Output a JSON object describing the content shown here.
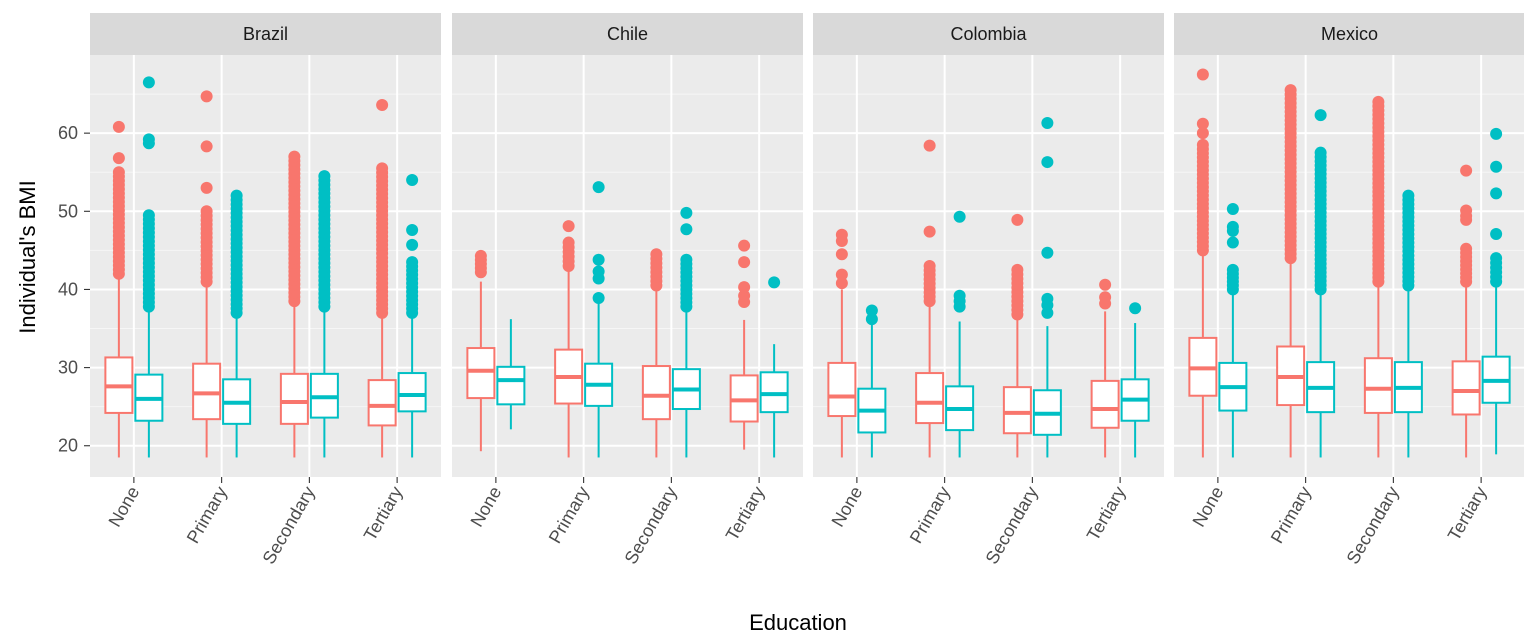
{
  "chart_data": {
    "type": "boxplot",
    "xlabel": "Education",
    "ylabel": "Individual's BMI",
    "ylim": [
      16,
      70
    ],
    "y_ticks": [
      20,
      30,
      40,
      50,
      60
    ],
    "categories": [
      "None",
      "Primary",
      "Secondary",
      "Tertiary"
    ],
    "series_colors": [
      "#F8766D",
      "#00BFC4"
    ],
    "grid": true,
    "legend": "none",
    "panels": [
      {
        "title": "Brazil",
        "groups": [
          {
            "category": "None",
            "boxes": [
              {
                "min": 18.5,
                "q1": 24.2,
                "median": 27.6,
                "q3": 31.3,
                "max": 42.0,
                "outliers_range": [
                  42.0,
                  55.0
                ],
                "outliers": [
                  56.8,
                  60.8
                ]
              },
              {
                "min": 18.5,
                "q1": 23.2,
                "median": 26.0,
                "q3": 29.1,
                "max": 37.8,
                "outliers_range": [
                  37.8,
                  49.5
                ],
                "outliers": [
                  58.7,
                  59.2,
                  66.5
                ]
              }
            ]
          },
          {
            "category": "Primary",
            "boxes": [
              {
                "min": 18.5,
                "q1": 23.4,
                "median": 26.7,
                "q3": 30.5,
                "max": 41.0,
                "outliers_range": [
                  41.0,
                  50.0
                ],
                "outliers": [
                  53.0,
                  58.3,
                  64.7
                ]
              },
              {
                "min": 18.5,
                "q1": 22.8,
                "median": 25.5,
                "q3": 28.5,
                "max": 37.0,
                "outliers_range": [
                  37.0,
                  52.0
                ],
                "outliers": []
              }
            ]
          },
          {
            "category": "Secondary",
            "boxes": [
              {
                "min": 18.5,
                "q1": 22.8,
                "median": 25.6,
                "q3": 29.2,
                "max": 38.5,
                "outliers_range": [
                  38.5,
                  57.0
                ],
                "outliers": []
              },
              {
                "min": 18.5,
                "q1": 23.6,
                "median": 26.2,
                "q3": 29.2,
                "max": 37.8,
                "outliers_range": [
                  37.8,
                  54.5
                ],
                "outliers": []
              }
            ]
          },
          {
            "category": "Tertiary",
            "boxes": [
              {
                "min": 18.5,
                "q1": 22.6,
                "median": 25.1,
                "q3": 28.4,
                "max": 37.0,
                "outliers_range": [
                  37.0,
                  55.5
                ],
                "outliers": [
                  63.6
                ]
              },
              {
                "min": 18.5,
                "q1": 24.4,
                "median": 26.5,
                "q3": 29.3,
                "max": 37.0,
                "outliers_range": [
                  37.0,
                  43.5
                ],
                "outliers": [
                  45.7,
                  47.6,
                  54.0
                ]
              }
            ]
          }
        ]
      },
      {
        "title": "Chile",
        "groups": [
          {
            "category": "None",
            "boxes": [
              {
                "min": 19.3,
                "q1": 26.1,
                "median": 29.6,
                "q3": 32.5,
                "max": 41.0,
                "outliers_range": [
                  42.2,
                  44.3
                ],
                "outliers": []
              },
              {
                "min": 22.1,
                "q1": 25.3,
                "median": 28.4,
                "q3": 30.1,
                "max": 36.2,
                "outliers_range": [],
                "outliers": []
              }
            ]
          },
          {
            "category": "Primary",
            "boxes": [
              {
                "min": 18.5,
                "q1": 25.4,
                "median": 28.8,
                "q3": 32.3,
                "max": 42.5,
                "outliers_range": [
                  43.0,
                  46.0
                ],
                "outliers": [
                  48.1
                ]
              },
              {
                "min": 18.5,
                "q1": 25.1,
                "median": 27.8,
                "q3": 30.5,
                "max": 38.5,
                "outliers_range": [],
                "outliers": [
                  38.9,
                  41.4,
                  42.3,
                  43.8,
                  53.1
                ]
              }
            ]
          },
          {
            "category": "Secondary",
            "boxes": [
              {
                "min": 18.5,
                "q1": 23.4,
                "median": 26.4,
                "q3": 30.2,
                "max": 40.0,
                "outliers_range": [
                  40.5,
                  44.5
                ],
                "outliers": []
              },
              {
                "min": 18.5,
                "q1": 24.7,
                "median": 27.2,
                "q3": 29.8,
                "max": 37.5,
                "outliers_range": [
                  37.8,
                  43.8
                ],
                "outliers": [
                  47.7,
                  49.8
                ]
              }
            ]
          },
          {
            "category": "Tertiary",
            "boxes": [
              {
                "min": 19.5,
                "q1": 23.1,
                "median": 25.8,
                "q3": 29.0,
                "max": 36.1,
                "outliers_range": [],
                "outliers": [
                  38.4,
                  39.2,
                  40.3,
                  43.5,
                  45.6
                ]
              },
              {
                "min": 18.5,
                "q1": 24.3,
                "median": 26.6,
                "q3": 29.4,
                "max": 33.0,
                "outliers_range": [],
                "outliers": [
                  40.9
                ]
              }
            ]
          }
        ]
      },
      {
        "title": "Colombia",
        "groups": [
          {
            "category": "None",
            "boxes": [
              {
                "min": 18.5,
                "q1": 23.8,
                "median": 26.3,
                "q3": 30.6,
                "max": 40.0,
                "outliers_range": [],
                "outliers": [
                  40.8,
                  41.9,
                  44.5,
                  46.2,
                  47.0
                ]
              },
              {
                "min": 18.5,
                "q1": 21.7,
                "median": 24.5,
                "q3": 27.3,
                "max": 35.5,
                "outliers_range": [],
                "outliers": [
                  36.2,
                  37.3
                ]
              }
            ]
          },
          {
            "category": "Primary",
            "boxes": [
              {
                "min": 18.5,
                "q1": 22.9,
                "median": 25.5,
                "q3": 29.3,
                "max": 38.0,
                "outliers_range": [
                  38.5,
                  43.0
                ],
                "outliers": [
                  47.4,
                  58.4
                ]
              },
              {
                "min": 18.5,
                "q1": 22.0,
                "median": 24.7,
                "q3": 27.6,
                "max": 35.9,
                "outliers_range": [],
                "outliers": [
                  37.8,
                  38.5,
                  39.2,
                  49.3
                ]
              }
            ]
          },
          {
            "category": "Secondary",
            "boxes": [
              {
                "min": 18.5,
                "q1": 21.6,
                "median": 24.2,
                "q3": 27.5,
                "max": 36.5,
                "outliers_range": [
                  36.8,
                  42.5
                ],
                "outliers": [
                  48.9
                ]
              },
              {
                "min": 18.5,
                "q1": 21.4,
                "median": 24.1,
                "q3": 27.1,
                "max": 35.3,
                "outliers_range": [],
                "outliers": [
                  37.0,
                  38.0,
                  38.8,
                  44.7,
                  56.3,
                  61.3
                ]
              }
            ]
          },
          {
            "category": "Tertiary",
            "boxes": [
              {
                "min": 18.5,
                "q1": 22.3,
                "median": 24.7,
                "q3": 28.3,
                "max": 37.2,
                "outliers_range": [],
                "outliers": [
                  38.2,
                  39.0,
                  40.6
                ]
              },
              {
                "min": 18.5,
                "q1": 23.2,
                "median": 25.9,
                "q3": 28.5,
                "max": 35.7,
                "outliers_range": [],
                "outliers": [
                  37.6
                ]
              }
            ]
          }
        ]
      },
      {
        "title": "Mexico",
        "groups": [
          {
            "category": "None",
            "boxes": [
              {
                "min": 18.5,
                "q1": 26.4,
                "median": 29.9,
                "q3": 33.8,
                "max": 45.0,
                "outliers_range": [
                  45.0,
                  58.5
                ],
                "outliers": [
                  60.0,
                  61.2,
                  67.5
                ]
              },
              {
                "min": 18.5,
                "q1": 24.5,
                "median": 27.5,
                "q3": 30.6,
                "max": 39.5,
                "outliers_range": [
                  40.0,
                  42.5
                ],
                "outliers": [
                  46.0,
                  47.5,
                  48.0,
                  50.3
                ]
              }
            ]
          },
          {
            "category": "Primary",
            "boxes": [
              {
                "min": 18.5,
                "q1": 25.2,
                "median": 28.8,
                "q3": 32.7,
                "max": 44.0,
                "outliers_range": [
                  44.0,
                  65.5
                ],
                "outliers": []
              },
              {
                "min": 18.5,
                "q1": 24.3,
                "median": 27.4,
                "q3": 30.7,
                "max": 40.0,
                "outliers_range": [
                  40.0,
                  57.5
                ],
                "outliers": [
                  62.3
                ]
              }
            ]
          },
          {
            "category": "Secondary",
            "boxes": [
              {
                "min": 18.5,
                "q1": 24.2,
                "median": 27.3,
                "q3": 31.2,
                "max": 41.0,
                "outliers_range": [
                  41.0,
                  64.0
                ],
                "outliers": []
              },
              {
                "min": 18.5,
                "q1": 24.3,
                "median": 27.4,
                "q3": 30.7,
                "max": 40.5,
                "outliers_range": [
                  40.5,
                  52.0
                ],
                "outliers": []
              }
            ]
          },
          {
            "category": "Tertiary",
            "boxes": [
              {
                "min": 18.5,
                "q1": 24.0,
                "median": 27.0,
                "q3": 30.8,
                "max": 40.5,
                "outliers_range": [
                  41.0,
                  45.2
                ],
                "outliers": [
                  48.9,
                  49.4,
                  50.1,
                  55.2
                ]
              },
              {
                "min": 18.9,
                "q1": 25.5,
                "median": 28.3,
                "q3": 31.4,
                "max": 40.5,
                "outliers_range": [
                  41.0,
                  44.0
                ],
                "outliers": [
                  47.1,
                  52.3,
                  55.7,
                  59.9
                ]
              }
            ]
          }
        ]
      }
    ]
  }
}
